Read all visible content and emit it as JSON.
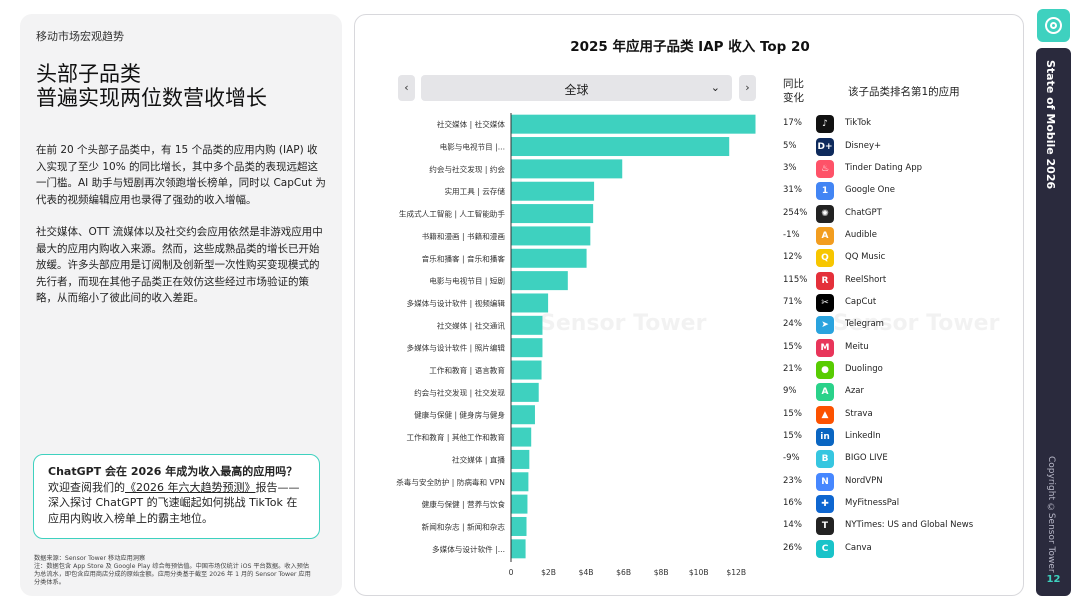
{
  "left": {
    "section_label": "移动市场宏观趋势",
    "headline_line1": "头部子品类",
    "headline_line2": "普遍实现两位数营收增长",
    "para1": "在前 20 个头部子品类中，有 15 个品类的应用内购 (IAP) 收入实现了至少 10% 的同比增长，其中多个品类的表现远超这一门槛。AI 助手与短剧再次领跑增长榜单，同时以 CapCut 为代表的视频编辑应用也录得了强劲的收入增幅。",
    "para2": "社交媒体、OTT 流媒体以及社交约会应用依然是非游戏应用中最大的应用内购收入来源。然而，这些成熟品类的增长已开始放缓。许多头部应用是订阅制及创新型一次性购买变现模式的先行者，而现在其他子品类正在效仿这些经过市场验证的策略，从而缩小了彼此间的收入差距。",
    "callout_q": "ChatGPT 会在 2026 年成为收入最高的应用吗？",
    "callout_1": "欢迎查阅我们的",
    "callout_link": "《2026 年六大趋势预测》",
    "callout_2": "报告——深入探讨 ChatGPT 的飞速崛起如何挑战 TikTok 在应用内购收入榜单上的霸主地位。",
    "footnote": "数据来源：Sensor Tower 移动应用洞察\n注：数据包含 App Store 及 Google Play 综合每预估值。中国市场仅统计 iOS 平台数据。收入预估为总流水，即包含应用商店分成的原始金额。应用分类基于截至 2026 年 1 月的 Sensor Tower 应用分类体系。"
  },
  "controls": {
    "prev": "‹",
    "next": "›",
    "region": "全球",
    "chevron": "⌄"
  },
  "columns": {
    "yoy_line1": "同比",
    "yoy_line2": "变化",
    "top_app": "该子品类排名第1的应用"
  },
  "watermark": "Sensor Tower",
  "side": {
    "title": "State of Mobile 2026",
    "copyright": "Copyright ©Sensor Tower",
    "page": "12"
  },
  "colors": {
    "accent": "#3ed1bf",
    "dark": "#2a2a3d"
  },
  "chart_data": {
    "type": "bar",
    "orientation": "horizontal",
    "title": "2025 年应用子品类 IAP 收入 Top 20",
    "xlabel": "",
    "ylabel": "",
    "xlim": [
      0,
      13
    ],
    "unit": "B",
    "x_ticks": [
      "0",
      "$2B",
      "$4B",
      "$6B",
      "$8B",
      "$10B",
      "$12B"
    ],
    "categories": [
      "社交媒体 | 社交媒体",
      "电影与电视节目 |...",
      "约会与社交发现 | 约会",
      "实用工具 | 云存储",
      "生成式人工智能 | 人工智能助手",
      "书籍和漫画 | 书籍和漫画",
      "音乐和播客 | 音乐和播客",
      "电影与电视节目 | 短剧",
      "多媒体与设计软件 | 视频编辑",
      "社交媒体 | 社交通讯",
      "多媒体与设计软件 | 照片编辑",
      "工作和教育 | 语言教育",
      "约会与社交发现 | 社交发现",
      "健康与保健 | 健身房与健身",
      "工作和教育 | 其他工作和教育",
      "社交媒体 | 直播",
      "杀毒与安全防护 | 防病毒和 VPN",
      "健康与保健 | 营养与饮食",
      "新闻和杂志 | 新闻和杂志",
      "多媒体与设计软件 |..."
    ],
    "values": [
      13.0,
      11.6,
      5.9,
      4.4,
      4.35,
      4.2,
      4.0,
      3.0,
      1.95,
      1.65,
      1.65,
      1.6,
      1.45,
      1.25,
      1.05,
      0.95,
      0.9,
      0.85,
      0.8,
      0.75
    ],
    "yoy": [
      "17%",
      "5%",
      "3%",
      "31%",
      "254%",
      "-1%",
      "12%",
      "115%",
      "71%",
      "24%",
      "15%",
      "21%",
      "9%",
      "15%",
      "15%",
      "-9%",
      "23%",
      "16%",
      "14%",
      "26%"
    ],
    "top_apps": [
      "TikTok",
      "Disney+",
      "Tinder Dating App",
      "Google One",
      "ChatGPT",
      "Audible",
      "QQ Music",
      "ReelShort",
      "CapCut",
      "Telegram",
      "Meitu",
      "Duolingo",
      "Azar",
      "Strava",
      "LinkedIn",
      "BIGO LIVE",
      "NordVPN",
      "MyFitnessPal",
      "NYTimes: US and Global News",
      "Canva"
    ],
    "app_icon_colors": [
      "#111111",
      "#0e2a5c",
      "#fe5268",
      "#4285f4",
      "#222222",
      "#f29d1f",
      "#f7c600",
      "#e4303a",
      "#000000",
      "#2aa3de",
      "#e8355a",
      "#58cc02",
      "#2ad28a",
      "#fc5200",
      "#0a66c2",
      "#36c6e0",
      "#4687ff",
      "#0e66d0",
      "#222222",
      "#19c3c9"
    ],
    "app_icon_glyphs": [
      "♪",
      "D+",
      "♨",
      "1",
      "✺",
      "A",
      "Q",
      "R",
      "✂",
      "➤",
      "M",
      "●",
      "A",
      "▲",
      "in",
      "B",
      "N",
      "✚",
      "T",
      "C"
    ]
  }
}
